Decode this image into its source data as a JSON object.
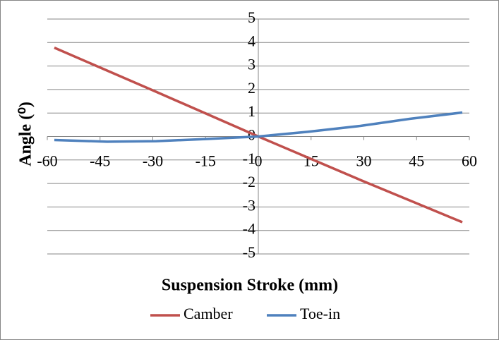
{
  "chart_data": {
    "type": "line",
    "xlabel": "Suspension Stroke (mm)",
    "ylabel": "Angle (⁰)",
    "xlim": [
      -60,
      60
    ],
    "xticks": [
      -60,
      -45,
      -30,
      -15,
      0,
      15,
      30,
      45,
      60
    ],
    "ylim": [
      -5,
      5
    ],
    "yticks": [
      -5,
      -4,
      -3,
      -2,
      -1,
      0,
      1,
      2,
      3,
      4,
      5
    ],
    "grid": true,
    "legend": "bottom",
    "series": [
      {
        "name": "Camber",
        "color": "#c0504d",
        "x": [
          -58,
          -29,
          0,
          29,
          58
        ],
        "values": [
          3.78,
          1.9,
          0,
          -1.85,
          -3.65
        ]
      },
      {
        "name": "Toe-in",
        "color": "#4f81bd",
        "x": [
          -58,
          -43,
          -29,
          -14,
          0,
          14,
          29,
          43,
          58
        ],
        "values": [
          -0.15,
          -0.22,
          -0.2,
          -0.1,
          0,
          0.2,
          0.45,
          0.75,
          1.02
        ]
      }
    ]
  }
}
